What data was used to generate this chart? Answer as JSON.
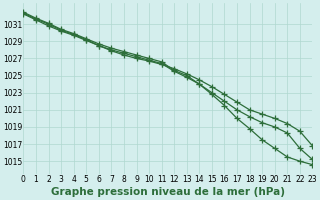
{
  "background_color": "#d4eeed",
  "grid_color": "#afd8d0",
  "line_color": "#2d6e3a",
  "title": "Graphe pression niveau de la mer (hPa)",
  "xlim": [
    0,
    23
  ],
  "ylim": [
    1013.5,
    1033.5
  ],
  "yticks": [
    1015,
    1017,
    1019,
    1021,
    1023,
    1025,
    1027,
    1029,
    1031
  ],
  "xticks": [
    0,
    1,
    2,
    3,
    4,
    5,
    6,
    7,
    8,
    9,
    10,
    11,
    12,
    13,
    14,
    15,
    16,
    17,
    18,
    19,
    20,
    21,
    22,
    23
  ],
  "series": [
    [
      1032.2,
      1031.5,
      1030.8,
      1030.2,
      1029.7,
      1029.1,
      1028.5,
      1027.9,
      1027.4,
      1027.0,
      1026.7,
      1026.3,
      1025.8,
      1025.2,
      1024.5,
      1023.7,
      1022.8,
      1021.9,
      1021.0,
      1020.5,
      1020.0,
      1019.4,
      1018.5,
      1016.8
    ],
    [
      1032.3,
      1031.6,
      1031.0,
      1030.3,
      1029.8,
      1029.2,
      1028.5,
      1028.0,
      1027.6,
      1027.2,
      1026.8,
      1026.4,
      1025.5,
      1024.8,
      1024.0,
      1023.0,
      1022.0,
      1021.0,
      1020.2,
      1019.5,
      1019.0,
      1018.3,
      1016.5,
      1015.2
    ],
    [
      1032.4,
      1031.7,
      1031.1,
      1030.4,
      1029.9,
      1029.3,
      1028.7,
      1028.2,
      1027.8,
      1027.4,
      1027.0,
      1026.6,
      1025.6,
      1025.0,
      1024.0,
      1022.8,
      1021.5,
      1020.0,
      1018.8,
      1017.5,
      1016.5,
      1015.5,
      1015.0,
      1014.6
    ]
  ],
  "marker": "+",
  "markersize": 4,
  "linewidth": 0.9,
  "title_fontsize": 7.5,
  "tick_fontsize": 5.5
}
